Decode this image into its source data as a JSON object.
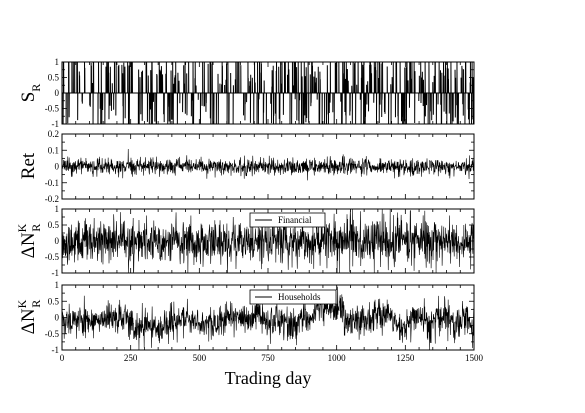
{
  "chart_data": {
    "type": "line",
    "xlabel": "Trading day",
    "xlim": [
      0,
      1500
    ],
    "xticks": [
      "0",
      "250",
      "500",
      "750",
      "1000",
      "1250",
      "1500"
    ],
    "panels": [
      {
        "id": "sr",
        "ylabel_main": "S",
        "ylabel_sub": "R",
        "ylabel_sup": "",
        "ylim": [
          -1,
          1
        ],
        "yticks": [
          "1",
          "0.5",
          "0",
          "-0.5",
          "-1"
        ],
        "legend": "",
        "description_values": {
          "style": "sparse-spikes",
          "zero_fraction": 0.7,
          "min": -1,
          "max": 1,
          "seed": 11
        }
      },
      {
        "id": "ret",
        "ylabel_main": "Ret",
        "ylabel_sub": "",
        "ylabel_sup": "",
        "ylim": [
          -0.2,
          0.2
        ],
        "yticks": [
          "0.2",
          "0.1",
          "0",
          "-0.1",
          "-0.2"
        ],
        "legend": "",
        "description_values": {
          "style": "noise",
          "std": 0.025,
          "clip": 0.2,
          "seed": 23
        }
      },
      {
        "id": "financial",
        "ylabel_main": "ΔN",
        "ylabel_sub": "R",
        "ylabel_sup": "K",
        "ylim": [
          -1,
          1
        ],
        "yticks": [
          "1",
          "0.5",
          "0",
          "-0.5",
          "-1"
        ],
        "legend": "Financial",
        "legend_position": "top-center",
        "description_values": {
          "style": "noise",
          "std": 0.35,
          "clip": 1,
          "seed": 37
        }
      },
      {
        "id": "households",
        "ylabel_main": "ΔN",
        "ylabel_sub": "R",
        "ylabel_sup": "K",
        "ylim": [
          -1,
          1
        ],
        "yticks": [
          "1",
          "0.5",
          "0",
          "-0.5",
          "-1"
        ],
        "legend": "Households",
        "legend_position": "top-center",
        "description_values": {
          "style": "persistent",
          "std": 0.45,
          "clip": 1,
          "seed": 53
        }
      }
    ]
  }
}
